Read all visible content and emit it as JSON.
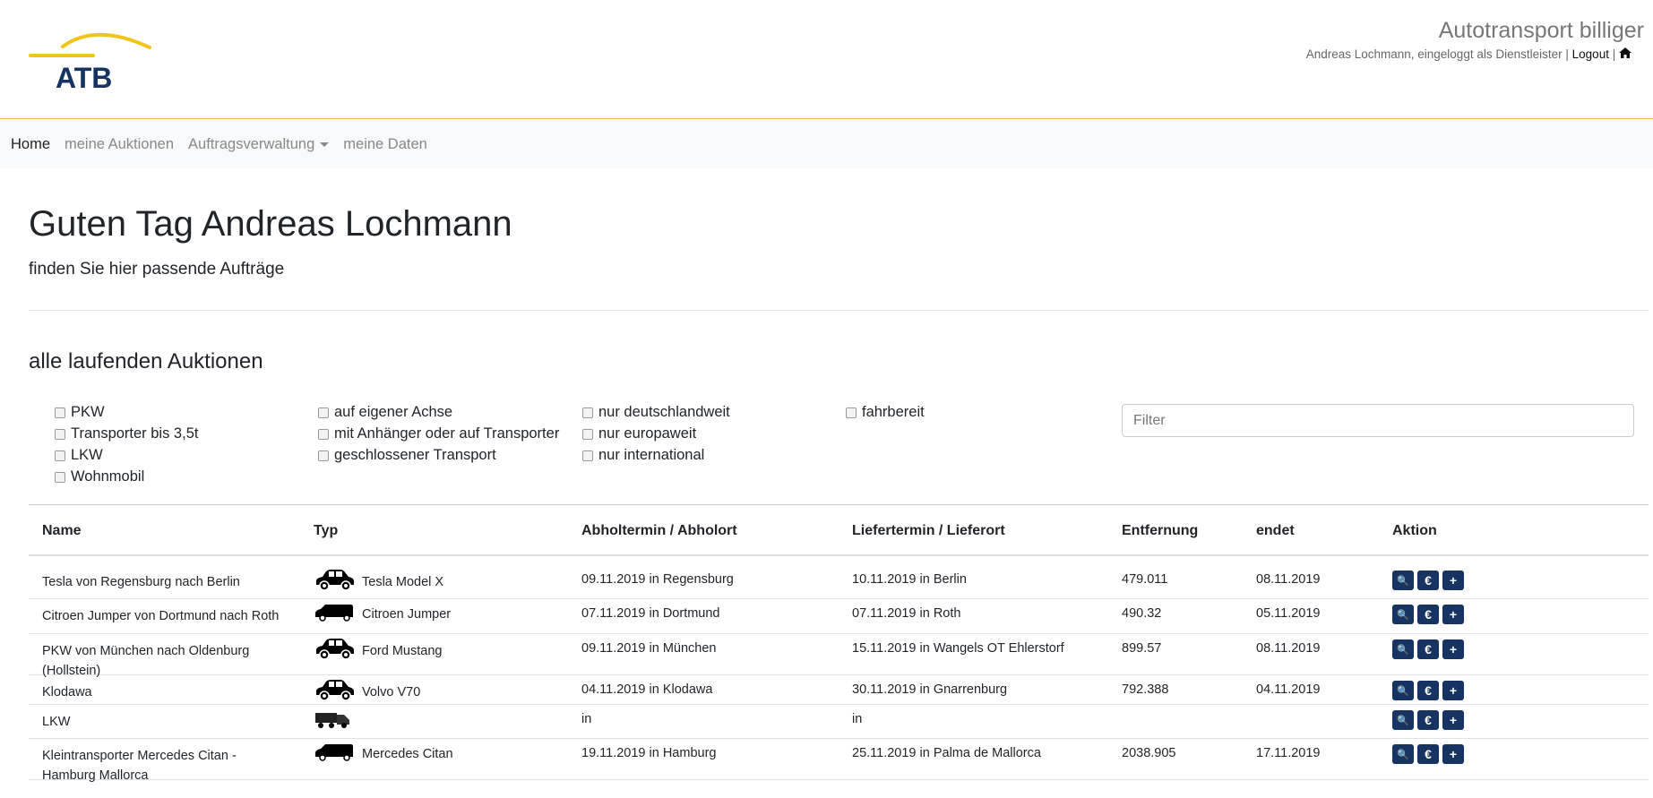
{
  "header": {
    "logo_text": "ATB",
    "brand": "Autotransport billiger",
    "user_info": "Andreas Lochmann, eingeloggt als Dienstleister",
    "sep": "|",
    "logout": "Logout",
    "home_icon": "home-icon"
  },
  "nav": {
    "items": [
      {
        "label": "Home",
        "active": true
      },
      {
        "label": "meine Auktionen"
      },
      {
        "label": "Auftragsverwaltung",
        "dropdown": true
      },
      {
        "label": "meine Daten"
      }
    ]
  },
  "main": {
    "title": "Guten Tag Andreas Lochmann",
    "subtitle": "finden Sie hier passende Aufträge",
    "section_title": "alle laufenden Auktionen",
    "filters": {
      "col1": [
        "PKW",
        "Transporter bis 3,5t",
        "LKW",
        "Wohnmobil"
      ],
      "col2": [
        "auf eigener Achse",
        "mit Anhänger oder auf Transporter",
        "geschlossener Transport"
      ],
      "col3": [
        "nur deutschlandweit",
        "nur europaweit",
        "nur international"
      ],
      "col4": [
        "fahrbereit"
      ]
    },
    "filter_placeholder": "Filter"
  },
  "table": {
    "headers": [
      "Name",
      "Typ",
      "Abholtermin / Abholort",
      "Liefertermin / Lieferort",
      "Entfernung",
      "endet",
      "Aktion"
    ],
    "rows": [
      {
        "name": "Tesla von Regensburg nach Berlin",
        "icon": "car",
        "typ": "Tesla Model X",
        "pickup": "09.11.2019 in Regensburg",
        "delivery": "10.11.2019 in Berlin",
        "distance": "479.011",
        "ends": "08.11.2019"
      },
      {
        "name": "Citroen Jumper von Dortmund nach Roth",
        "icon": "van",
        "typ": "Citroen Jumper",
        "pickup": "07.11.2019 in Dortmund",
        "delivery": "07.11.2019 in Roth",
        "distance": "490.32",
        "ends": "05.11.2019"
      },
      {
        "name": "PKW von München nach Oldenburg (Hollstein)",
        "icon": "car",
        "typ": "Ford Mustang",
        "pickup": "09.11.2019 in München",
        "delivery": "15.11.2019 in Wangels OT Ehlerstorf",
        "distance": "899.57",
        "ends": "08.11.2019"
      },
      {
        "name": "Klodawa",
        "icon": "car",
        "typ": "Volvo V70",
        "pickup": "04.11.2019 in Klodawa",
        "delivery": "30.11.2019 in Gnarrenburg",
        "distance": "792.388",
        "ends": "04.11.2019"
      },
      {
        "name": "LKW",
        "icon": "truck",
        "typ": "",
        "pickup": "in",
        "delivery": "in",
        "distance": "",
        "ends": ""
      },
      {
        "name": "Kleintransporter Mercedes Citan - Hamburg Mallorca",
        "icon": "van",
        "typ": "Mercedes Citan",
        "pickup": "19.11.2019 in Hamburg",
        "delivery": "25.11.2019 in Palma de Mallorca",
        "distance": "2038.905",
        "ends": "17.11.2019"
      }
    ],
    "actions": [
      {
        "icon": "search-icon",
        "label": "🔍"
      },
      {
        "icon": "euro-icon",
        "label": "€"
      },
      {
        "icon": "plus-icon",
        "label": "+"
      }
    ]
  },
  "colors": {
    "accent": "#163361",
    "logo_yellow": "#f0c419"
  }
}
